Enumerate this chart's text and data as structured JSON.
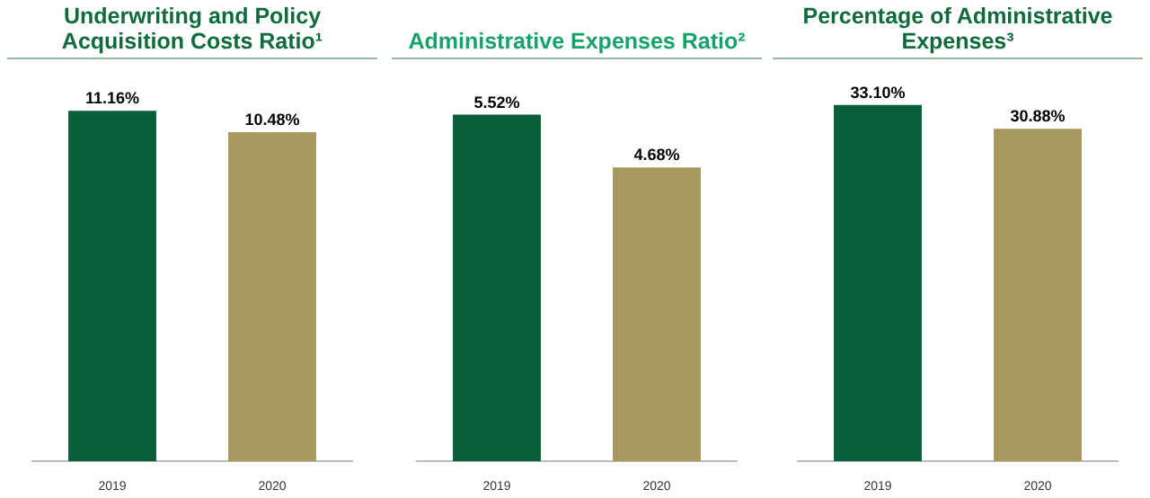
{
  "chart_data": [
    {
      "type": "bar",
      "title": "Underwriting and Policy Acquisition Costs Ratio¹",
      "categories": [
        "2019",
        "2020"
      ],
      "values": [
        11.16,
        10.48
      ],
      "colors": [
        "#0b5e3a",
        "#a89a5f"
      ],
      "value_labels": [
        "11.16%",
        "10.48%"
      ],
      "tick_labels": "x"
    },
    {
      "type": "bar",
      "title": "Administrative Expenses Ratio²",
      "categories": [
        "2019",
        "2020"
      ],
      "values": [
        5.52,
        4.68
      ],
      "colors": [
        "#0b5e3a",
        "#a89a5f"
      ],
      "value_labels": [
        "5.52%",
        "4.68%"
      ],
      "tick_labels": "x"
    },
    {
      "type": "bar",
      "title": "Percentage of Administrative Expenses³",
      "categories": [
        "2019",
        "2020"
      ],
      "values": [
        33.1,
        30.88
      ],
      "colors": [
        "#0b5e3a",
        "#a89a5f"
      ],
      "value_labels": [
        "33.10%",
        "30.88%"
      ],
      "tick_labels": "x"
    }
  ]
}
